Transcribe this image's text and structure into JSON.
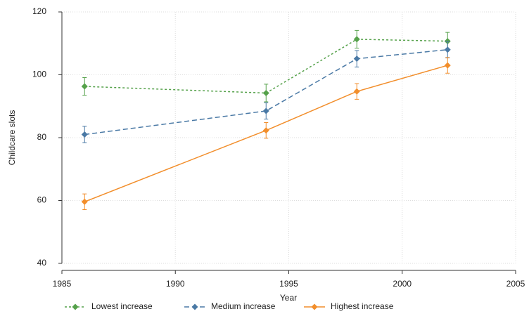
{
  "chart_data": {
    "type": "line",
    "x_label": "Year",
    "y_label": "Childcare slots",
    "x": [
      1986,
      1994,
      1998,
      2002
    ],
    "series": [
      {
        "name": "Lowest increase",
        "color": "#55a14a",
        "line_style": "dotted",
        "values": [
          96.3,
          94.2,
          111.3,
          110.7
        ],
        "errors": [
          2.8,
          2.8,
          2.8,
          2.8
        ]
      },
      {
        "name": "Medium increase",
        "color": "#4a79a5",
        "line_style": "dashed",
        "values": [
          81,
          88.5,
          105.1,
          108
        ],
        "errors": [
          2.6,
          2.6,
          2.6,
          2.6
        ]
      },
      {
        "name": "Highest increase",
        "color": "#f28e2b",
        "line_style": "solid",
        "values": [
          59.6,
          82.3,
          94.7,
          103
        ],
        "errors": [
          2.5,
          2.5,
          2.5,
          2.5
        ]
      }
    ],
    "xlim": [
      1985,
      2005
    ],
    "xticks": [
      1985,
      1990,
      1995,
      2000,
      2005
    ],
    "ylim": [
      40,
      120
    ],
    "yticks": [
      40,
      60,
      80,
      100,
      120
    ],
    "grid": true,
    "legend": "bottom"
  }
}
